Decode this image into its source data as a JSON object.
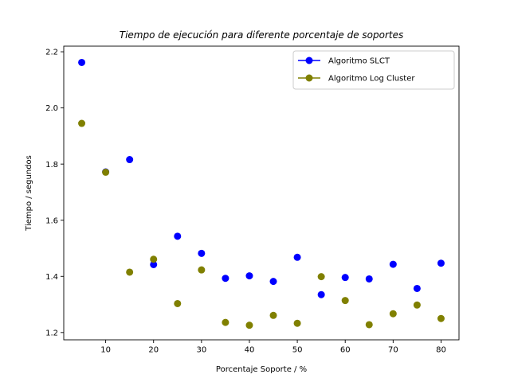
{
  "chart_data": {
    "type": "scatter",
    "title": "Tiempo de ejecución para diferente porcentaje de soportes",
    "xlabel": "Porcentaje Soporte / %",
    "ylabel": "Tiempo / segundos",
    "xlim": [
      1.25,
      83.75
    ],
    "ylim": [
      1.174,
      2.22
    ],
    "xticks": [
      10,
      20,
      30,
      40,
      50,
      60,
      70,
      80
    ],
    "yticks": [
      1.2,
      1.4,
      1.6,
      1.8,
      2.0,
      2.2
    ],
    "ytick_labels": [
      "1.2",
      "1.4",
      "1.6",
      "1.8",
      "2.0",
      "2.2"
    ],
    "grid": false,
    "legend_position": "top-right",
    "x": [
      5,
      10,
      15,
      20,
      25,
      30,
      35,
      40,
      45,
      50,
      55,
      60,
      65,
      70,
      75,
      80
    ],
    "series": [
      {
        "name": "Algoritmo SLCT",
        "color": "#0000ff",
        "values": [
          2.162,
          1.772,
          1.816,
          1.442,
          1.543,
          1.482,
          1.393,
          1.402,
          1.382,
          1.468,
          1.335,
          1.396,
          1.391,
          1.443,
          1.357,
          1.447
        ]
      },
      {
        "name": "Algoritmo Log Cluster",
        "color": "#808000",
        "values": [
          1.945,
          1.771,
          1.415,
          1.461,
          1.303,
          1.423,
          1.236,
          1.226,
          1.261,
          1.233,
          1.399,
          1.314,
          1.228,
          1.267,
          1.298,
          1.25
        ]
      }
    ]
  }
}
